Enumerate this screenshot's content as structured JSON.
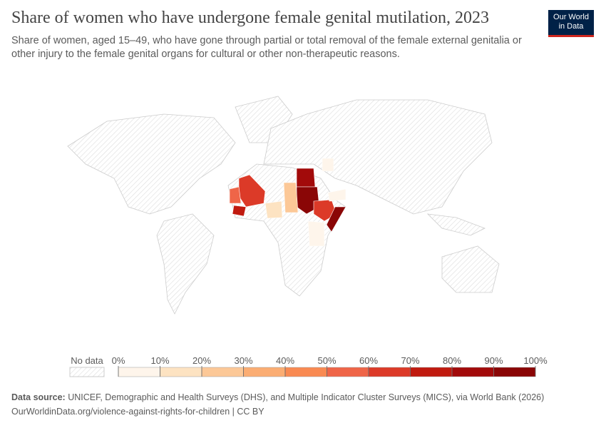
{
  "header": {
    "title": "Share of women who have undergone female genital mutilation, 2023",
    "subtitle": "Share of women, aged 15–49, who have gone through partial or total removal of the female external genitalia or other injury to the female genital organs for cultural or other non-therapeutic reasons.",
    "logo": [
      "Our World",
      "in Data"
    ]
  },
  "legend": {
    "no_data": "No data",
    "ticks": [
      {
        "value": 0,
        "label": "0%"
      },
      {
        "value": 10,
        "label": "10%"
      },
      {
        "value": 20,
        "label": "20%"
      },
      {
        "value": 30,
        "label": "30%"
      },
      {
        "value": 40,
        "label": "40%"
      },
      {
        "value": 50,
        "label": "50%"
      },
      {
        "value": 60,
        "label": "60%"
      },
      {
        "value": 70,
        "label": "70%"
      },
      {
        "value": 80,
        "label": "80%"
      },
      {
        "value": 90,
        "label": "90%"
      },
      {
        "value": 100,
        "label": "100%"
      }
    ],
    "colors": [
      "#fef5eb",
      "#fde3c2",
      "#fcc897",
      "#fbad73",
      "#f98a52",
      "#ef6548",
      "#dc3a28",
      "#c01a0f",
      "#a20a0a",
      "#8a0606"
    ]
  },
  "footer": {
    "source_label": "Data source:",
    "source": "UNICEF, Demographic and Health Surveys (DHS), and Multiple Indicator Cluster Surveys (MICS), via World Bank (2026)",
    "url": "OurWorldinData.org/violence-against-rights-for-children | CC BY"
  }
}
